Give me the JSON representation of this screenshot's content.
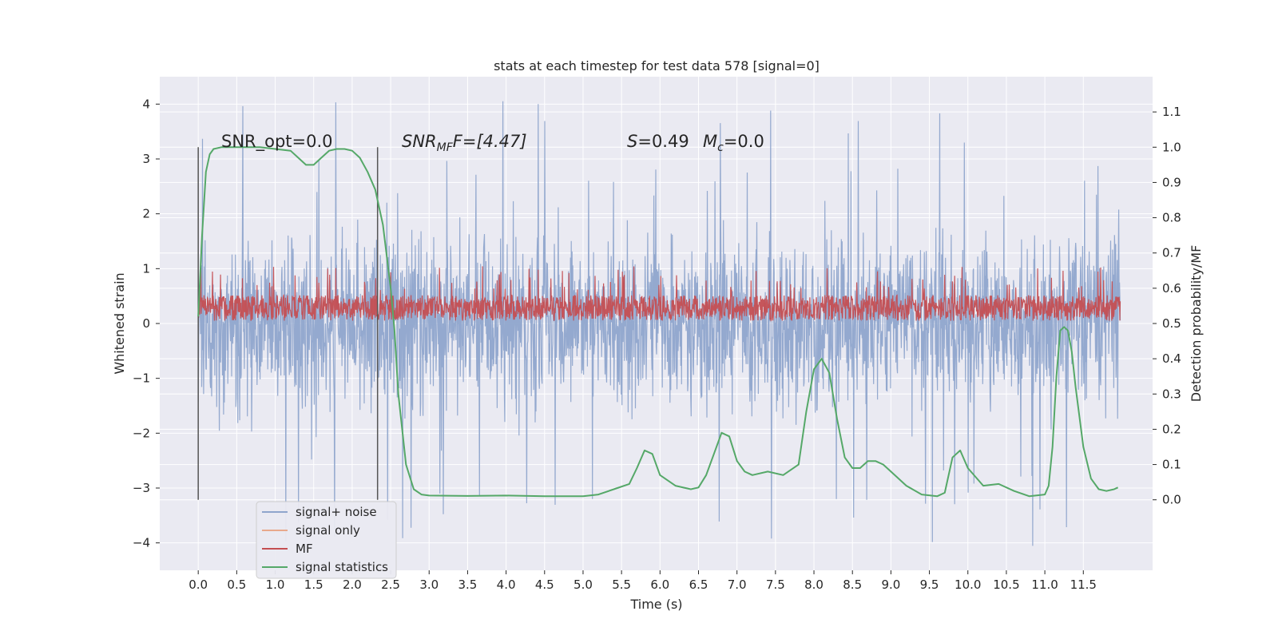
{
  "chart_data": {
    "type": "line",
    "title": "stats at each timestep for test data 578 [signal=0]",
    "xlabel": "Time (s)",
    "ylabel": "Whitened strain",
    "ylabel_right": "Detection probability/MF",
    "xlim": [
      -0.5,
      12.4
    ],
    "ylim_left": [
      -4.5,
      4.5
    ],
    "ylim_right": [
      -0.2,
      1.2
    ],
    "x_ticks": [
      "0.0",
      "0.5",
      "1.0",
      "1.5",
      "2.0",
      "2.5",
      "3.0",
      "3.5",
      "4.0",
      "4.5",
      "5.0",
      "5.5",
      "6.0",
      "6.5",
      "7.0",
      "7.5",
      "8.0",
      "8.5",
      "9.0",
      "9.5",
      "10.0",
      "10.5",
      "11.0",
      "11.5"
    ],
    "y_ticks_left": [
      "4",
      "3",
      "2",
      "1",
      "0",
      "−1",
      "−2",
      "−3",
      "−4"
    ],
    "y_ticks_right": [
      "1.1",
      "1.0",
      "0.9",
      "0.8",
      "0.7",
      "0.6",
      "0.5",
      "0.4",
      "0.3",
      "0.2",
      "0.1",
      "0.0"
    ],
    "grid": true,
    "legend_position": "lower-left",
    "annotations": {
      "snr_opt": "SNR_opt=0.0",
      "snr_mf_italic": "SNR",
      "snr_mf_sub": "MF",
      "snr_mf_rest": "F=[4.47]",
      "s_italic": "S",
      "s_rest": "=0.49",
      "mc_italic": "M",
      "mc_sub": "c",
      "mc_rest": "=0.0"
    },
    "window_markers_x": [
      0.0,
      2.33
    ],
    "series": [
      {
        "name": "signal+ noise",
        "color": "#8fa5cc",
        "axis": "left",
        "noise_amplitude": 1.2,
        "spike_max": 4.1
      },
      {
        "name": "signal only",
        "color": "#e8a98c",
        "axis": "left",
        "values": []
      },
      {
        "name": "MF",
        "color": "#c44e52",
        "axis": "left",
        "band_low": 0.05,
        "band_high": 0.6
      },
      {
        "name": "signal statistics",
        "color": "#55a868",
        "axis": "right",
        "x": [
          0.0,
          0.05,
          0.1,
          0.15,
          0.2,
          0.3,
          0.5,
          0.8,
          1.0,
          1.2,
          1.3,
          1.4,
          1.5,
          1.6,
          1.7,
          1.8,
          1.9,
          2.0,
          2.1,
          2.2,
          2.3,
          2.4,
          2.5,
          2.55,
          2.6,
          2.7,
          2.8,
          2.9,
          3.0,
          3.5,
          4.0,
          4.5,
          5.0,
          5.2,
          5.4,
          5.6,
          5.7,
          5.8,
          5.9,
          6.0,
          6.2,
          6.4,
          6.5,
          6.6,
          6.7,
          6.8,
          6.9,
          7.0,
          7.1,
          7.2,
          7.4,
          7.6,
          7.8,
          7.9,
          8.0,
          8.1,
          8.2,
          8.3,
          8.4,
          8.5,
          8.6,
          8.7,
          8.8,
          8.9,
          9.0,
          9.2,
          9.4,
          9.6,
          9.7,
          9.8,
          9.9,
          10.0,
          10.2,
          10.4,
          10.6,
          10.8,
          11.0,
          11.05,
          11.1,
          11.15,
          11.2,
          11.25,
          11.3,
          11.35,
          11.4,
          11.5,
          11.6,
          11.7,
          11.8,
          11.9,
          11.95
        ],
        "values": [
          0.52,
          0.75,
          0.93,
          0.98,
          0.995,
          1.0,
          1.0,
          1.0,
          0.995,
          0.99,
          0.97,
          0.95,
          0.95,
          0.97,
          0.99,
          0.995,
          0.995,
          0.99,
          0.97,
          0.93,
          0.88,
          0.78,
          0.6,
          0.48,
          0.3,
          0.1,
          0.03,
          0.015,
          0.012,
          0.011,
          0.012,
          0.01,
          0.01,
          0.015,
          0.03,
          0.045,
          0.09,
          0.14,
          0.13,
          0.07,
          0.04,
          0.03,
          0.035,
          0.07,
          0.13,
          0.19,
          0.18,
          0.11,
          0.08,
          0.07,
          0.08,
          0.07,
          0.1,
          0.25,
          0.37,
          0.4,
          0.36,
          0.23,
          0.12,
          0.09,
          0.09,
          0.11,
          0.11,
          0.1,
          0.08,
          0.04,
          0.015,
          0.01,
          0.02,
          0.12,
          0.14,
          0.09,
          0.04,
          0.045,
          0.025,
          0.01,
          0.015,
          0.04,
          0.15,
          0.35,
          0.48,
          0.49,
          0.48,
          0.42,
          0.32,
          0.15,
          0.06,
          0.03,
          0.025,
          0.03,
          0.035
        ]
      }
    ]
  },
  "legend": {
    "items": [
      {
        "label": "signal+ noise",
        "color": "#8fa5cc"
      },
      {
        "label": "signal only",
        "color": "#e8a98c"
      },
      {
        "label": "MF",
        "color": "#c44e52"
      },
      {
        "label": "signal statistics",
        "color": "#55a868"
      }
    ]
  },
  "colors": {
    "plot_background": "#eaeaf2",
    "grid": "#ffffff",
    "marker_line": "#555555"
  }
}
